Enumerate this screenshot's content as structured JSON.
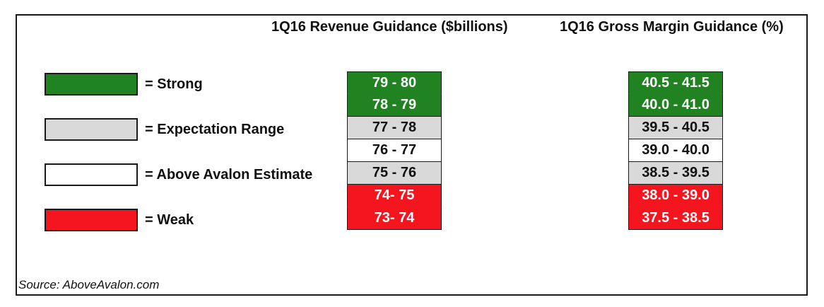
{
  "chart_data": {
    "type": "table",
    "colors": {
      "strong": "#218221",
      "expectation": "#d9d9d9",
      "estimate": "#ffffff",
      "weak": "#f5151e"
    },
    "legend": [
      {
        "key": "strong",
        "label": "= Strong"
      },
      {
        "key": "expectation",
        "label": "= Expectation Range"
      },
      {
        "key": "estimate",
        "label": "= Above Avalon Estimate"
      },
      {
        "key": "weak",
        "label": "= Weak"
      }
    ],
    "columns": [
      {
        "title": "1Q16 Revenue Guidance ($billions)",
        "rows": [
          {
            "range": "79 - 80",
            "category": "strong"
          },
          {
            "range": "78 - 79",
            "category": "strong"
          },
          {
            "range": "77 - 78",
            "category": "expectation"
          },
          {
            "range": "76 - 77",
            "category": "estimate"
          },
          {
            "range": "75 - 76",
            "category": "expectation"
          },
          {
            "range": "74- 75",
            "category": "weak"
          },
          {
            "range": "73- 74",
            "category": "weak"
          }
        ]
      },
      {
        "title": "1Q16 Gross Margin Guidance (%)",
        "rows": [
          {
            "range": "40.5 - 41.5",
            "category": "strong"
          },
          {
            "range": "40.0 - 41.0",
            "category": "strong"
          },
          {
            "range": "39.5 - 40.5",
            "category": "expectation"
          },
          {
            "range": "39.0 - 40.0",
            "category": "estimate"
          },
          {
            "range": "38.5 - 39.5",
            "category": "expectation"
          },
          {
            "range": "38.0 - 39.0",
            "category": "weak"
          },
          {
            "range": "37.5 - 38.5",
            "category": "weak"
          }
        ]
      }
    ],
    "source": "Source: AboveAvalon.com"
  }
}
